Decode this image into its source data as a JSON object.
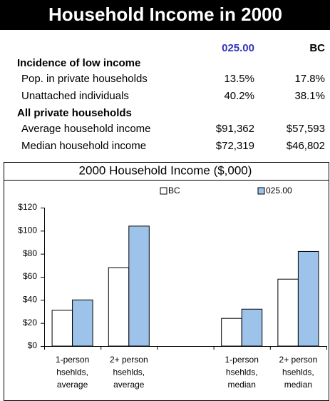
{
  "header": {
    "title": "Household Income in 2000"
  },
  "table": {
    "columns": [
      "025.00",
      "BC"
    ],
    "sections": [
      {
        "heading": "Incidence of low income",
        "rows": [
          {
            "label": "Pop. in private households",
            "values": [
              "13.5%",
              "17.8%"
            ]
          },
          {
            "label": "Unattached individuals",
            "values": [
              "40.2%",
              "38.1%"
            ]
          }
        ]
      },
      {
        "heading": "All private households",
        "rows": [
          {
            "label": "Average household income",
            "values": [
              "$91,362",
              "$57,593"
            ]
          },
          {
            "label": "Median household income",
            "values": [
              "$72,319",
              "$46,802"
            ]
          }
        ]
      }
    ]
  },
  "chart_data": {
    "type": "bar",
    "title": "2000 Household Income ($,000)",
    "categories": [
      [
        "1-person",
        "hsehlds,",
        "average"
      ],
      [
        "2+ person",
        "hsehlds,",
        "average"
      ],
      null,
      [
        "1-person",
        "hsehlds,",
        "median"
      ],
      [
        "2+ person",
        "hsehlds,",
        "median"
      ]
    ],
    "series": [
      {
        "name": "BC",
        "color": "#ffffff",
        "values": [
          31,
          68,
          null,
          24,
          58
        ]
      },
      {
        "name": "025.00",
        "color": "#9dc3ea",
        "values": [
          40,
          104,
          null,
          32,
          82
        ]
      }
    ],
    "ylim": [
      0,
      120
    ],
    "yticks": [
      {
        "value": 0,
        "label": "$0"
      },
      {
        "value": 20,
        "label": "$20"
      },
      {
        "value": 40,
        "label": "$40"
      },
      {
        "value": 60,
        "label": "$60"
      },
      {
        "value": 80,
        "label": "$80"
      },
      {
        "value": 100,
        "label": "$100"
      },
      {
        "value": 120,
        "label": "$120"
      }
    ],
    "grid": false
  }
}
